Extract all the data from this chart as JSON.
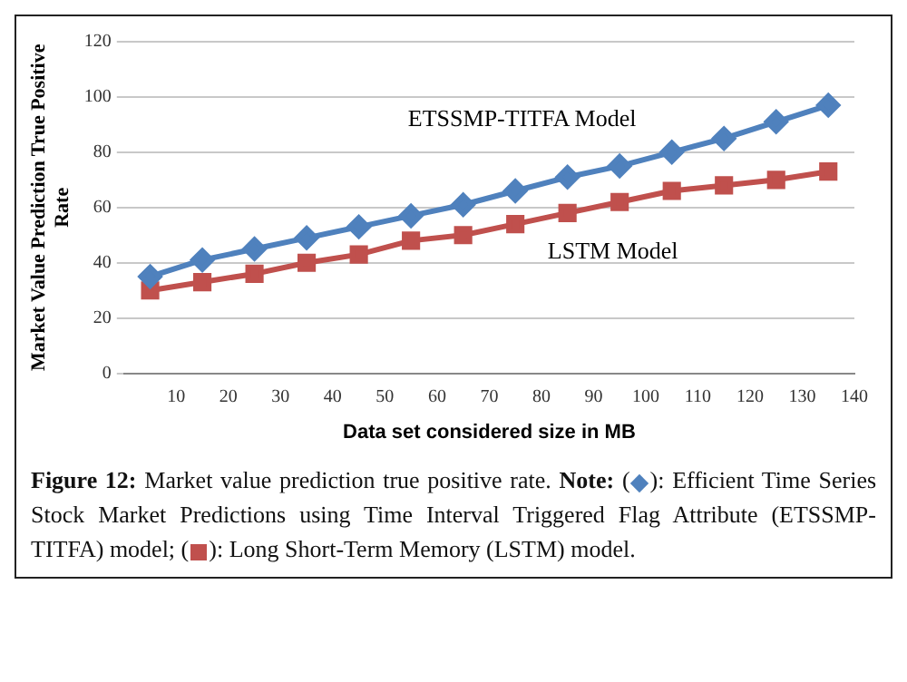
{
  "chart_data": {
    "type": "line",
    "xlabel": "Data set considered size in MB",
    "ylabel": "Market Value Prediction True Positive Rate",
    "x": [
      5,
      15,
      25,
      35,
      45,
      55,
      65,
      75,
      85,
      95,
      105,
      115,
      125,
      135
    ],
    "series": [
      {
        "name": "ETSSMP-TITFA Model",
        "color": "#4f81bd",
        "marker": "diamond",
        "values": [
          35,
          41,
          45,
          49,
          53,
          57,
          61,
          66,
          71,
          75,
          80,
          85,
          91,
          97
        ]
      },
      {
        "name": "LSTM Model",
        "color": "#c0504d",
        "marker": "square",
        "values": [
          30,
          33,
          36,
          40,
          43,
          48,
          50,
          54,
          58,
          62,
          66,
          68,
          70,
          73
        ]
      }
    ],
    "xlim": [
      0,
      140
    ],
    "xticks": [
      10,
      20,
      30,
      40,
      50,
      60,
      70,
      80,
      90,
      100,
      110,
      120,
      130,
      140
    ],
    "ylim": [
      0,
      120
    ],
    "yticks": [
      0,
      20,
      40,
      60,
      80,
      100,
      120
    ],
    "grid": "y",
    "legend": false,
    "annotations": [
      "Figure 12:",
      "Market value prediction true positive rate.",
      "Note:",
      "(",
      "): Efficient Time Series Stock Market Predictions using Time Interval Triggered Flag Attribute (ETSSMP-TITFA) model; (",
      "): Long Short-Term Memory (LSTM) model."
    ]
  }
}
